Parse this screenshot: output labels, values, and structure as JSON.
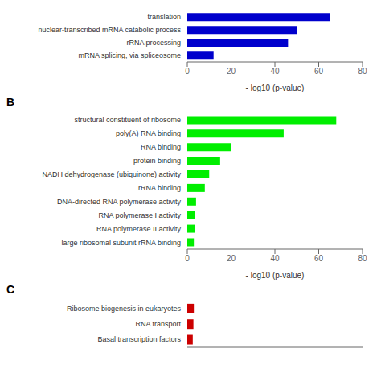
{
  "chart_data": [
    {
      "type": "bar",
      "orientation": "horizontal",
      "categories": [
        "translation",
        "nuclear-transcribed mRNA catabolic process",
        "rRNA processing",
        "mRNA splicing, via spliceosome"
      ],
      "values": [
        65,
        50,
        46,
        12
      ],
      "color": "#0000cc",
      "xlabel": "- log10 (p-value)",
      "xlim": [
        0,
        80
      ],
      "xticks": [
        0,
        20,
        40,
        60,
        80
      ]
    },
    {
      "type": "bar",
      "orientation": "horizontal",
      "title": "B",
      "categories": [
        "structural constituent of ribosome",
        "poly(A) RNA binding",
        "RNA binding",
        "protein binding",
        "NADH dehydrogenase (ubiquinone) activity",
        "rRNA binding",
        "DNA-directed RNA polymerase activity",
        "RNA polymerase I activity",
        "RNA polymerase II activity",
        "large ribosomal subunit rRNA binding"
      ],
      "values": [
        68,
        44,
        20,
        15,
        10,
        8,
        4,
        3.5,
        3.5,
        3
      ],
      "color": "#00ee00",
      "xlabel": "- log10 (p-value)",
      "xlim": [
        0,
        80
      ],
      "xticks": [
        0,
        20,
        40,
        60,
        80
      ]
    },
    {
      "type": "bar",
      "orientation": "horizontal",
      "title": "C",
      "categories": [
        "Ribosome biogenesis in eukaryotes",
        "RNA transport",
        "Basal transcription factors"
      ],
      "values": [
        3.0,
        2.8,
        2.5
      ],
      "color": "#cc0000",
      "xlim": [
        0,
        80
      ],
      "tick_labels": "y"
    }
  ]
}
